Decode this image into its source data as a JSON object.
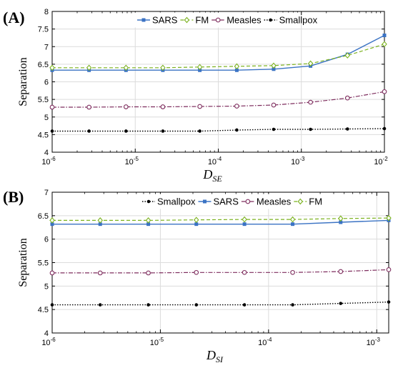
{
  "colors": {
    "SARS": "#3b73c4",
    "FM": "#7bb21f",
    "Measles": "#7e2d5e",
    "Smallpox": "#000000"
  },
  "chart_data": [
    {
      "panel_label": "(A)",
      "type": "line",
      "x_scale": "log",
      "xlim": [
        1e-06,
        0.01
      ],
      "ylim": [
        4,
        8
      ],
      "ylabel": "Separation",
      "xlabel_main": "D",
      "xlabel_sub": "SE",
      "x_tick_values": [
        1e-06,
        1e-05,
        0.0001,
        0.001,
        0.01
      ],
      "x_tick_exponents": [
        "-6",
        "-5",
        "-4",
        "-3",
        "-2"
      ],
      "y_ticks": [
        "4",
        "4.5",
        "5",
        "5.5",
        "6",
        "6.5",
        "7",
        "7.5",
        "8"
      ],
      "y_tick_values": [
        4,
        4.5,
        5,
        5.5,
        6,
        6.5,
        7,
        7.5,
        8
      ],
      "grid": true,
      "legend_order": [
        "SARS",
        "FM",
        "Measles",
        "Smallpox"
      ],
      "x": [
        1e-06,
        2.78e-06,
        7.74e-06,
        2.15e-05,
        5.99e-05,
        0.000167,
        0.000464,
        0.00129,
        0.00359,
        0.01
      ],
      "series": [
        {
          "name": "SARS",
          "values": [
            6.33,
            6.33,
            6.33,
            6.33,
            6.33,
            6.33,
            6.36,
            6.45,
            6.78,
            7.32
          ]
        },
        {
          "name": "FM",
          "values": [
            6.4,
            6.4,
            6.4,
            6.4,
            6.42,
            6.44,
            6.46,
            6.52,
            6.75,
            7.07
          ]
        },
        {
          "name": "Measles",
          "values": [
            5.28,
            5.28,
            5.29,
            5.29,
            5.3,
            5.31,
            5.34,
            5.42,
            5.54,
            5.72
          ]
        },
        {
          "name": "Smallpox",
          "values": [
            4.6,
            4.6,
            4.6,
            4.6,
            4.6,
            4.63,
            4.65,
            4.65,
            4.66,
            4.67
          ]
        }
      ]
    },
    {
      "panel_label": "(B)",
      "type": "line",
      "x_scale": "log",
      "xlim": [
        1e-06,
        0.00129
      ],
      "ylim": [
        4,
        7
      ],
      "ylabel": "Separation",
      "xlabel_main": "D",
      "xlabel_sub": "SI",
      "x_tick_values": [
        1e-06,
        1e-05,
        0.0001,
        0.001
      ],
      "x_tick_exponents": [
        "-6",
        "-5",
        "-4",
        "-3"
      ],
      "y_ticks": [
        "4",
        "4.5",
        "5",
        "5.5",
        "6",
        "6.5",
        "7"
      ],
      "y_tick_values": [
        4,
        4.5,
        5,
        5.5,
        6,
        6.5,
        7
      ],
      "grid": true,
      "legend_order": [
        "Smallpox",
        "SARS",
        "Measles",
        "FM"
      ],
      "x": [
        1e-06,
        2.78e-06,
        7.74e-06,
        2.15e-05,
        5.99e-05,
        0.000167,
        0.000464,
        0.00129
      ],
      "series": [
        {
          "name": "Smallpox",
          "values": [
            4.6,
            4.6,
            4.6,
            4.6,
            4.6,
            4.6,
            4.63,
            4.66
          ]
        },
        {
          "name": "SARS",
          "values": [
            6.32,
            6.32,
            6.32,
            6.32,
            6.32,
            6.32,
            6.36,
            6.4
          ]
        },
        {
          "name": "Measles",
          "values": [
            5.28,
            5.28,
            5.28,
            5.29,
            5.29,
            5.29,
            5.31,
            5.35
          ]
        },
        {
          "name": "FM",
          "values": [
            6.4,
            6.4,
            6.4,
            6.41,
            6.42,
            6.42,
            6.44,
            6.45
          ]
        }
      ]
    }
  ]
}
